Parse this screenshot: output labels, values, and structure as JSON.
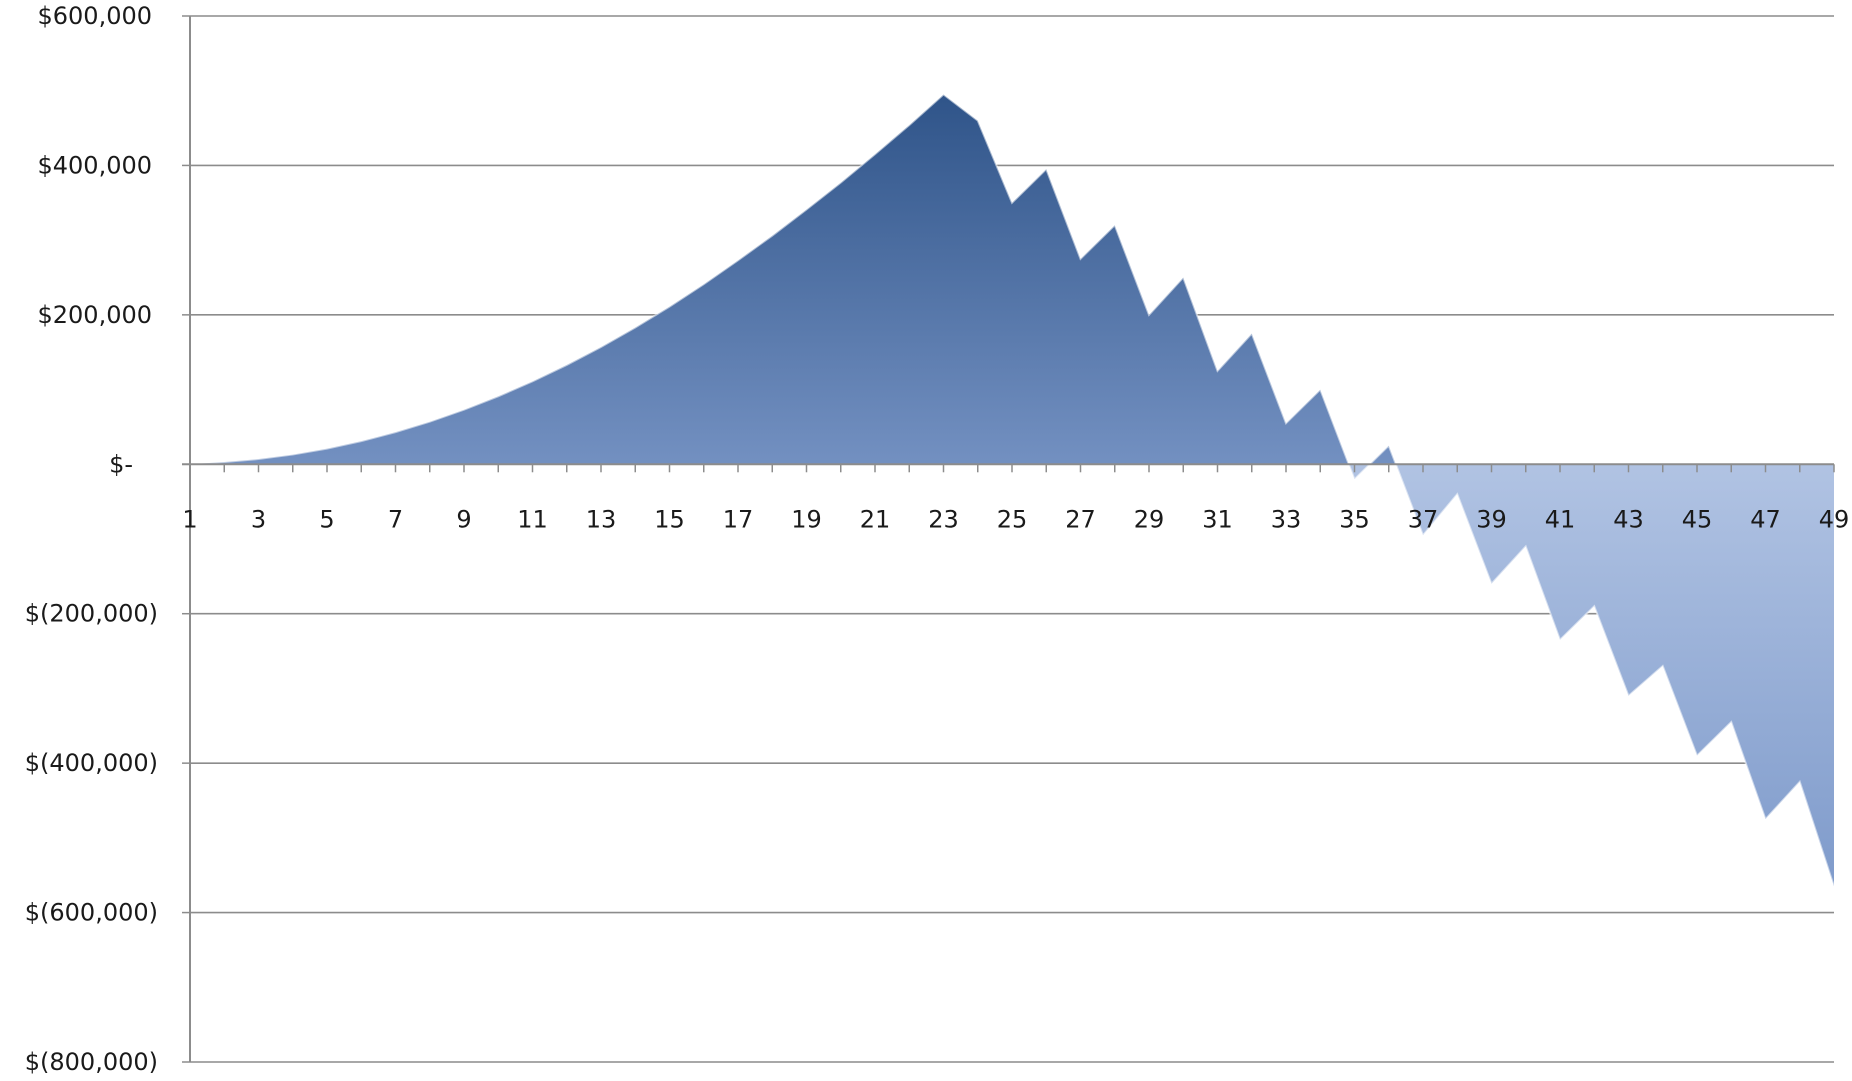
{
  "chart_data": {
    "type": "area",
    "title": "",
    "xlabel": "",
    "ylabel": "",
    "x": [
      1,
      2,
      3,
      4,
      5,
      6,
      7,
      8,
      9,
      10,
      11,
      12,
      13,
      14,
      15,
      16,
      17,
      18,
      19,
      20,
      21,
      22,
      23,
      24,
      25,
      26,
      27,
      28,
      29,
      30,
      31,
      32,
      33,
      34,
      35,
      36,
      37,
      38,
      39,
      40,
      41,
      42,
      43,
      44,
      45,
      46,
      47,
      48,
      49
    ],
    "x_tick_labels": [
      "1",
      "3",
      "5",
      "7",
      "9",
      "11",
      "13",
      "15",
      "17",
      "19",
      "21",
      "23",
      "25",
      "27",
      "29",
      "31",
      "33",
      "35",
      "37",
      "39",
      "41",
      "43",
      "45",
      "47",
      "49"
    ],
    "series": [
      {
        "values": [
          0,
          3000,
          7000,
          13000,
          21000,
          31000,
          43000,
          57000,
          73000,
          91000,
          111000,
          133000,
          157000,
          183000,
          211000,
          241000,
          273000,
          306000,
          341000,
          377000,
          415000,
          454000,
          495000,
          460000,
          350000,
          395000,
          275000,
          320000,
          200000,
          250000,
          125000,
          175000,
          55000,
          100000,
          -20000,
          25000,
          -95000,
          -40000,
          -160000,
          -110000,
          -235000,
          -190000,
          -310000,
          -270000,
          -390000,
          -345000,
          -475000,
          -425000,
          -565000
        ]
      }
    ],
    "ylim": [
      -800000,
      600000
    ],
    "y_ticks": [
      {
        "value": 600000,
        "label": "$600,000"
      },
      {
        "value": 400000,
        "label": "$400,000"
      },
      {
        "value": 200000,
        "label": "$200,000"
      },
      {
        "value": 0,
        "label": "$-"
      },
      {
        "value": -200000,
        "label": "$(200,000)"
      },
      {
        "value": -400000,
        "label": "$(400,000)"
      },
      {
        "value": -600000,
        "label": "$(600,000)"
      },
      {
        "value": -800000,
        "label": "$(800,000)"
      }
    ],
    "grid": true,
    "legend": "none",
    "colors": {
      "fill_top": "#2f5489",
      "fill_mid": "#7f9bcb",
      "fill_bottom": "#dce6f8",
      "grid": "#8c8c8c",
      "text": "#1a1a1a"
    }
  }
}
